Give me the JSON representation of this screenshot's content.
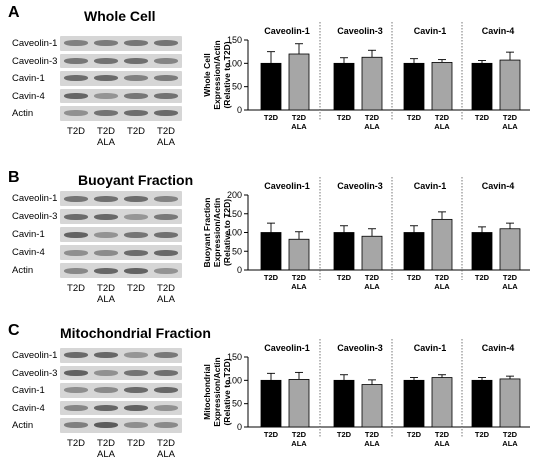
{
  "figure": {
    "panels": [
      {
        "letter": "A",
        "title": "Whole Cell",
        "blot_rows": [
          "Caveolin-1",
          "Caveolin-3",
          "Cavin-1",
          "Cavin-4",
          "Actin"
        ],
        "lane_labels": [
          "T2D",
          "T2D\nALA",
          "T2D",
          "T2D\nALA"
        ],
        "ylabel": "Whole Cell\nExpression/Actin\n(Relative to T2D)"
      },
      {
        "letter": "B",
        "title": "Buoyant Fraction",
        "blot_rows": [
          "Caveolin-1",
          "Caveolin-3",
          "Cavin-1",
          "Cavin-4",
          "Actin"
        ],
        "lane_labels": [
          "T2D",
          "T2D\nALA",
          "T2D",
          "T2D\nALA"
        ],
        "ylabel": "Buoyant Fraction\nExpression/Actin\n(Relative to T2D)"
      },
      {
        "letter": "C",
        "title": "Mitochondrial Fraction",
        "blot_rows": [
          "Caveolin-1",
          "Caveolin-3",
          "Cavin-1",
          "Cavin-4",
          "Actin"
        ],
        "lane_labels": [
          "T2D",
          "T2D\nALA",
          "T2D",
          "T2D\nALA"
        ],
        "ylabel": "Mitochondrial\nExpression/Actin\n(Relative to T2D)"
      }
    ],
    "colors": {
      "T2D": "#000000",
      "T2D ALA": "#a6a6a6",
      "blot_background": "#d6d6d6",
      "band": "#4a4a4a"
    }
  },
  "chart_data": [
    {
      "type": "bar",
      "panel": "A",
      "ylabel": "Whole Cell Expression/Actin (Relative to T2D)",
      "ylim": [
        0,
        150
      ],
      "yticks": [
        0,
        50,
        100,
        150
      ],
      "groups": [
        "Caveolin-1",
        "Caveolin-3",
        "Cavin-1",
        "Cavin-4"
      ],
      "categories": [
        "T2D",
        "T2D\nALA"
      ],
      "series": [
        {
          "values": [
            100,
            120
          ],
          "errors": [
            25,
            22
          ]
        },
        {
          "values": [
            100,
            113
          ],
          "errors": [
            12,
            15
          ]
        },
        {
          "values": [
            100,
            102
          ],
          "errors": [
            10,
            6
          ]
        },
        {
          "values": [
            100,
            107
          ],
          "errors": [
            6,
            17
          ]
        }
      ]
    },
    {
      "type": "bar",
      "panel": "B",
      "ylabel": "Buoyant Fraction Expression/Actin (Relative to T2D)",
      "ylim": [
        0,
        200
      ],
      "yticks": [
        0,
        50,
        100,
        150,
        200
      ],
      "groups": [
        "Caveolin-1",
        "Caveolin-3",
        "Cavin-1",
        "Cavin-4"
      ],
      "categories": [
        "T2D",
        "T2D\nALA"
      ],
      "series": [
        {
          "values": [
            100,
            82
          ],
          "errors": [
            25,
            20
          ]
        },
        {
          "values": [
            100,
            90
          ],
          "errors": [
            18,
            20
          ]
        },
        {
          "values": [
            100,
            135
          ],
          "errors": [
            18,
            20
          ]
        },
        {
          "values": [
            100,
            110
          ],
          "errors": [
            15,
            15
          ]
        }
      ]
    },
    {
      "type": "bar",
      "panel": "C",
      "ylabel": "Mitochondrial Expression/Actin (Relative to T2D)",
      "ylim": [
        0,
        150
      ],
      "yticks": [
        0,
        50,
        100,
        150
      ],
      "groups": [
        "Caveolin-1",
        "Caveolin-3",
        "Cavin-1",
        "Cavin-4"
      ],
      "categories": [
        "T2D",
        "T2D\nALA"
      ],
      "series": [
        {
          "values": [
            100,
            102
          ],
          "errors": [
            15,
            15
          ]
        },
        {
          "values": [
            100,
            91
          ],
          "errors": [
            12,
            10
          ]
        },
        {
          "values": [
            100,
            106
          ],
          "errors": [
            6,
            6
          ]
        },
        {
          "values": [
            100,
            103
          ],
          "errors": [
            6,
            6
          ]
        }
      ]
    }
  ]
}
